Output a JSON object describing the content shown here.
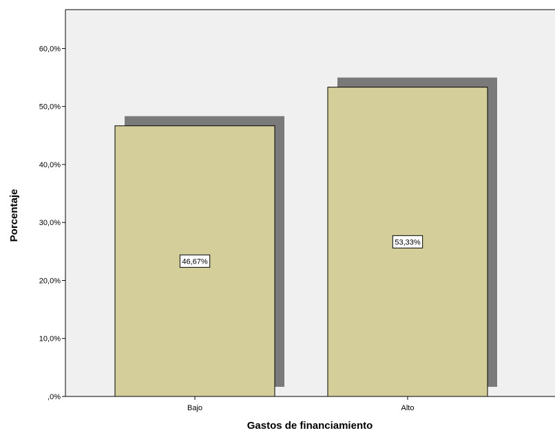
{
  "chart_data": {
    "type": "bar",
    "categories": [
      "Bajo",
      "Alto"
    ],
    "values": [
      46.67,
      53.33
    ],
    "data_labels": [
      "46,67%",
      "53,33%"
    ],
    "xlabel": "Gastos de financiamiento",
    "ylabel": "Porcentaje",
    "ylim": [
      0,
      66.7
    ],
    "yticks": [
      0,
      10,
      20,
      30,
      40,
      50,
      60
    ],
    "ytick_labels": [
      ",0%",
      "10,0%",
      "20,0%",
      "30,0%",
      "40,0%",
      "50,0%",
      "60,0%"
    ],
    "grid": false,
    "legend": "none",
    "bar_style": "3d-shadow"
  },
  "colors": {
    "plot_background": "#f0f0f0",
    "bar_fill": "#d3ce9a",
    "bar_shadow": "#7a7a7a",
    "bar_stroke": "#000000"
  }
}
